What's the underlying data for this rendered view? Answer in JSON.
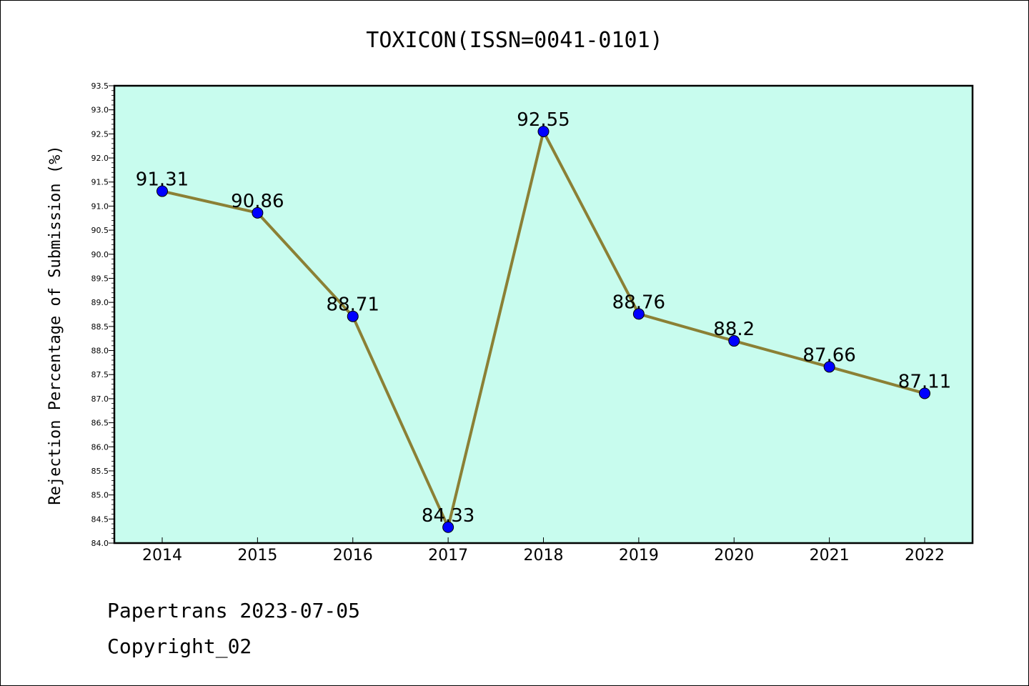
{
  "chart_data": {
    "type": "line",
    "title": "TOXICON(ISSN=0041-0101)",
    "xlabel": "",
    "ylabel": "Rejection Percentage of Submission (%)",
    "categories": [
      "2014",
      "2015",
      "2016",
      "2017",
      "2018",
      "2019",
      "2020",
      "2021",
      "2022"
    ],
    "series": [
      {
        "values": [
          91.31,
          90.86,
          88.71,
          84.33,
          92.55,
          88.76,
          88.2,
          87.66,
          87.11
        ],
        "labels": [
          "91.31",
          "90.86",
          "88.71",
          "84.33",
          "92.55",
          "88.76",
          "88.2",
          "87.66",
          "87.11"
        ]
      }
    ],
    "ylim": [
      84.0,
      93.5
    ],
    "yticks": [
      "84.0",
      "84.5",
      "85.0",
      "85.5",
      "86.0",
      "86.5",
      "87.0",
      "87.5",
      "88.0",
      "88.5",
      "89.0",
      "89.5",
      "90.0",
      "90.5",
      "91.0",
      "91.5",
      "92.0",
      "92.5",
      "93.0",
      "93.5"
    ],
    "grid": false,
    "colors": {
      "plot_background": "#c8fcee",
      "line": "#8b8035",
      "marker": "#0000ff"
    }
  },
  "footer": {
    "line1": "Papertrans 2023-07-05",
    "line2": "Copyright_02"
  }
}
